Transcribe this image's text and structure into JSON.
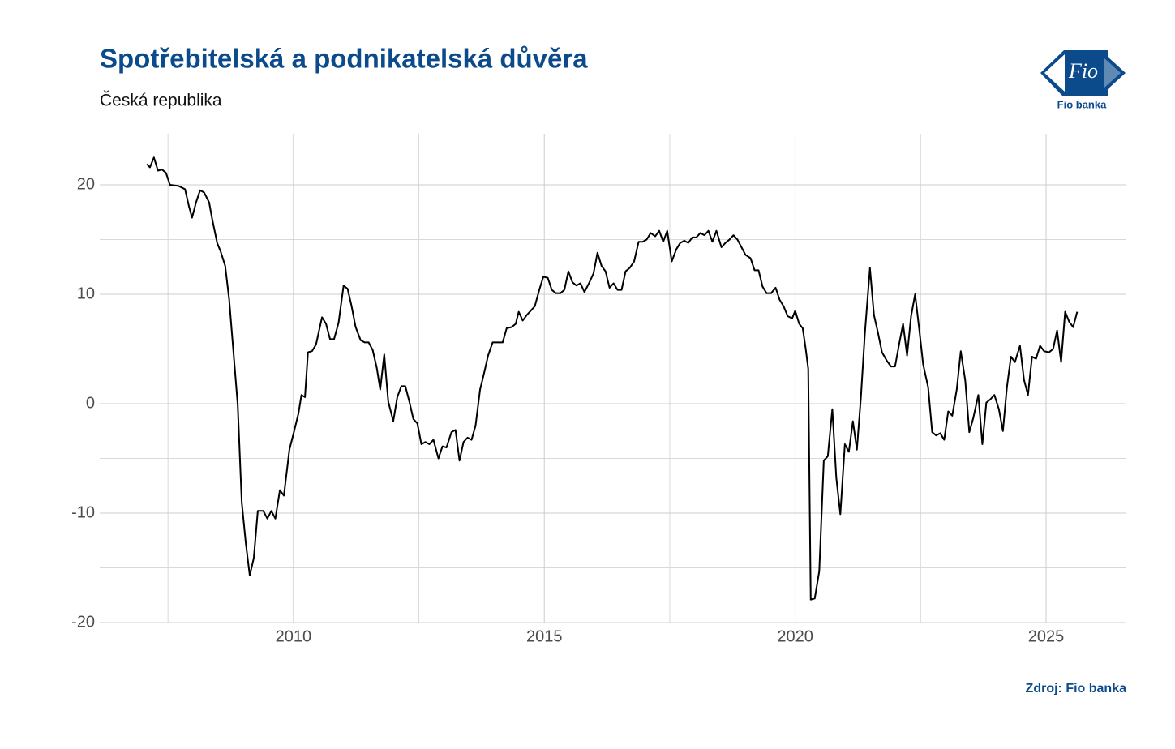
{
  "chart_data": {
    "type": "line",
    "title": "Spotřebitelská a podnikatelská důvěra",
    "subtitle": "Česká republika",
    "source": "Zdroj: Fio banka",
    "xlim": [
      2006.14,
      2026.6
    ],
    "ylim": [
      -20,
      24.67
    ],
    "xticks": [
      2010,
      2015,
      2020,
      2025
    ],
    "yticks": [
      -20,
      -10,
      0,
      10,
      20
    ],
    "xminor_ticks": [
      2007.5,
      2012.5,
      2017.5,
      2022.5
    ],
    "yminor_ticks": [
      -15,
      -5,
      5,
      15
    ],
    "grid": true,
    "x": [
      2007.08,
      2007.14,
      2007.22,
      2007.3,
      2007.38,
      2007.46,
      2007.54,
      2007.71,
      2007.84,
      2007.92,
      2007.98,
      2008.06,
      2008.14,
      2008.22,
      2008.32,
      2008.38,
      2008.48,
      2008.55,
      2008.64,
      2008.72,
      2008.8,
      2008.89,
      2008.97,
      2009.05,
      2009.13,
      2009.21,
      2009.29,
      2009.4,
      2009.48,
      2009.56,
      2009.64,
      2009.73,
      2009.81,
      2009.92,
      2010.02,
      2010.1,
      2010.16,
      2010.23,
      2010.29,
      2010.37,
      2010.45,
      2010.57,
      2010.65,
      2010.73,
      2010.81,
      2010.9,
      2011.0,
      2011.08,
      2011.16,
      2011.24,
      2011.34,
      2011.42,
      2011.5,
      2011.58,
      2011.66,
      2011.73,
      2011.81,
      2011.89,
      2011.99,
      2012.07,
      2012.15,
      2012.23,
      2012.31,
      2012.39,
      2012.47,
      2012.55,
      2012.63,
      2012.71,
      2012.79,
      2012.89,
      2012.97,
      2013.05,
      2013.15,
      2013.23,
      2013.31,
      2013.39,
      2013.47,
      2013.55,
      2013.63,
      2013.72,
      2013.8,
      2013.88,
      2013.97,
      2014.09,
      2014.17,
      2014.25,
      2014.35,
      2014.43,
      2014.49,
      2014.57,
      2014.65,
      2014.73,
      2014.81,
      2014.9,
      2014.98,
      2015.07,
      2015.15,
      2015.23,
      2015.32,
      2015.4,
      2015.48,
      2015.56,
      2015.64,
      2015.72,
      2015.8,
      2015.9,
      2015.98,
      2016.06,
      2016.14,
      2016.22,
      2016.3,
      2016.38,
      2016.46,
      2016.54,
      2016.62,
      2016.7,
      2016.79,
      2016.88,
      2016.96,
      2017.04,
      2017.12,
      2017.21,
      2017.29,
      2017.37,
      2017.45,
      2017.54,
      2017.63,
      2017.71,
      2017.79,
      2017.87,
      2017.95,
      2018.03,
      2018.11,
      2018.19,
      2018.27,
      2018.35,
      2018.43,
      2018.53,
      2018.61,
      2018.69,
      2018.77,
      2018.85,
      2018.93,
      2019.01,
      2019.11,
      2019.19,
      2019.27,
      2019.35,
      2019.43,
      2019.52,
      2019.61,
      2019.69,
      2019.77,
      2019.85,
      2019.94,
      2020.0,
      2020.08,
      2020.15,
      2020.21,
      2020.26,
      2020.31,
      2020.39,
      2020.48,
      2020.57,
      2020.65,
      2020.74,
      2020.82,
      2020.9,
      2020.99,
      2021.07,
      2021.15,
      2021.23,
      2021.31,
      2021.39,
      2021.49,
      2021.57,
      2021.65,
      2021.73,
      2021.83,
      2021.91,
      2021.99,
      2022.07,
      2022.15,
      2022.23,
      2022.31,
      2022.39,
      2022.47,
      2022.55,
      2022.65,
      2022.73,
      2022.81,
      2022.89,
      2022.97,
      2023.05,
      2023.13,
      2023.22,
      2023.3,
      2023.39,
      2023.47,
      2023.55,
      2023.65,
      2023.73,
      2023.81,
      2023.89,
      2023.97,
      2024.06,
      2024.14,
      2024.22,
      2024.3,
      2024.38,
      2024.48,
      2024.56,
      2024.64,
      2024.72,
      2024.8,
      2024.88,
      2024.96,
      2025.06,
      2025.14,
      2025.22,
      2025.3,
      2025.38,
      2025.46,
      2025.54,
      2025.62
    ],
    "series": [
      {
        "color": "#000000",
        "values": [
          21.9,
          21.6,
          22.5,
          21.3,
          21.4,
          21.1,
          20.0,
          19.9,
          19.6,
          18.0,
          17.0,
          18.4,
          19.5,
          19.3,
          18.4,
          16.9,
          14.7,
          13.9,
          12.6,
          9.5,
          5.0,
          -0.1,
          -9.0,
          -12.7,
          -15.7,
          -14.1,
          -9.8,
          -9.8,
          -10.5,
          -9.8,
          -10.5,
          -7.9,
          -8.4,
          -4.2,
          -2.4,
          -0.9,
          0.8,
          0.6,
          4.7,
          4.8,
          5.4,
          7.9,
          7.3,
          5.9,
          5.9,
          7.4,
          10.8,
          10.5,
          8.9,
          7.0,
          5.8,
          5.6,
          5.6,
          4.9,
          3.3,
          1.3,
          4.5,
          0.2,
          -1.6,
          0.6,
          1.6,
          1.6,
          0.2,
          -1.4,
          -1.8,
          -3.7,
          -3.5,
          -3.7,
          -3.3,
          -5.0,
          -3.9,
          -4.0,
          -2.6,
          -2.4,
          -5.2,
          -3.5,
          -3.1,
          -3.3,
          -2.0,
          1.3,
          2.8,
          4.4,
          5.6,
          5.6,
          5.6,
          6.9,
          7.0,
          7.3,
          8.4,
          7.6,
          8.1,
          8.5,
          8.9,
          10.4,
          11.6,
          11.5,
          10.4,
          10.1,
          10.1,
          10.4,
          12.1,
          11.1,
          10.8,
          11.0,
          10.2,
          11.1,
          11.9,
          13.8,
          12.6,
          12.1,
          10.6,
          11.0,
          10.4,
          10.4,
          12.1,
          12.4,
          13.0,
          14.8,
          14.8,
          15.0,
          15.6,
          15.3,
          15.8,
          14.8,
          15.8,
          13.0,
          14.1,
          14.7,
          14.9,
          14.7,
          15.2,
          15.2,
          15.6,
          15.4,
          15.8,
          14.8,
          15.8,
          14.3,
          14.7,
          15.0,
          15.4,
          15.0,
          14.3,
          13.6,
          13.3,
          12.2,
          12.2,
          10.7,
          10.1,
          10.1,
          10.6,
          9.5,
          8.9,
          8.0,
          7.8,
          8.5,
          7.3,
          6.9,
          5.0,
          3.2,
          -17.9,
          -17.8,
          -15.3,
          -5.2,
          -4.8,
          -0.5,
          -6.8,
          -10.1,
          -3.7,
          -4.4,
          -1.6,
          -4.2,
          0.6,
          6.5,
          12.4,
          8.1,
          6.5,
          4.7,
          3.9,
          3.4,
          3.4,
          5.4,
          7.3,
          4.4,
          8.0,
          10.0,
          6.9,
          3.6,
          1.5,
          -2.6,
          -2.9,
          -2.7,
          -3.3,
          -0.7,
          -1.1,
          1.3,
          4.8,
          2.1,
          -2.6,
          -1.3,
          0.8,
          -3.7,
          0.1,
          0.4,
          0.8,
          -0.5,
          -2.5,
          1.5,
          4.3,
          3.8,
          5.3,
          2.2,
          0.8,
          4.3,
          4.1,
          5.3,
          4.8,
          4.7,
          5.0,
          6.7,
          3.8,
          8.4,
          7.5,
          7.0,
          8.4
        ]
      }
    ]
  },
  "logo": {
    "mark": "Fio",
    "name": "Fio banka"
  }
}
